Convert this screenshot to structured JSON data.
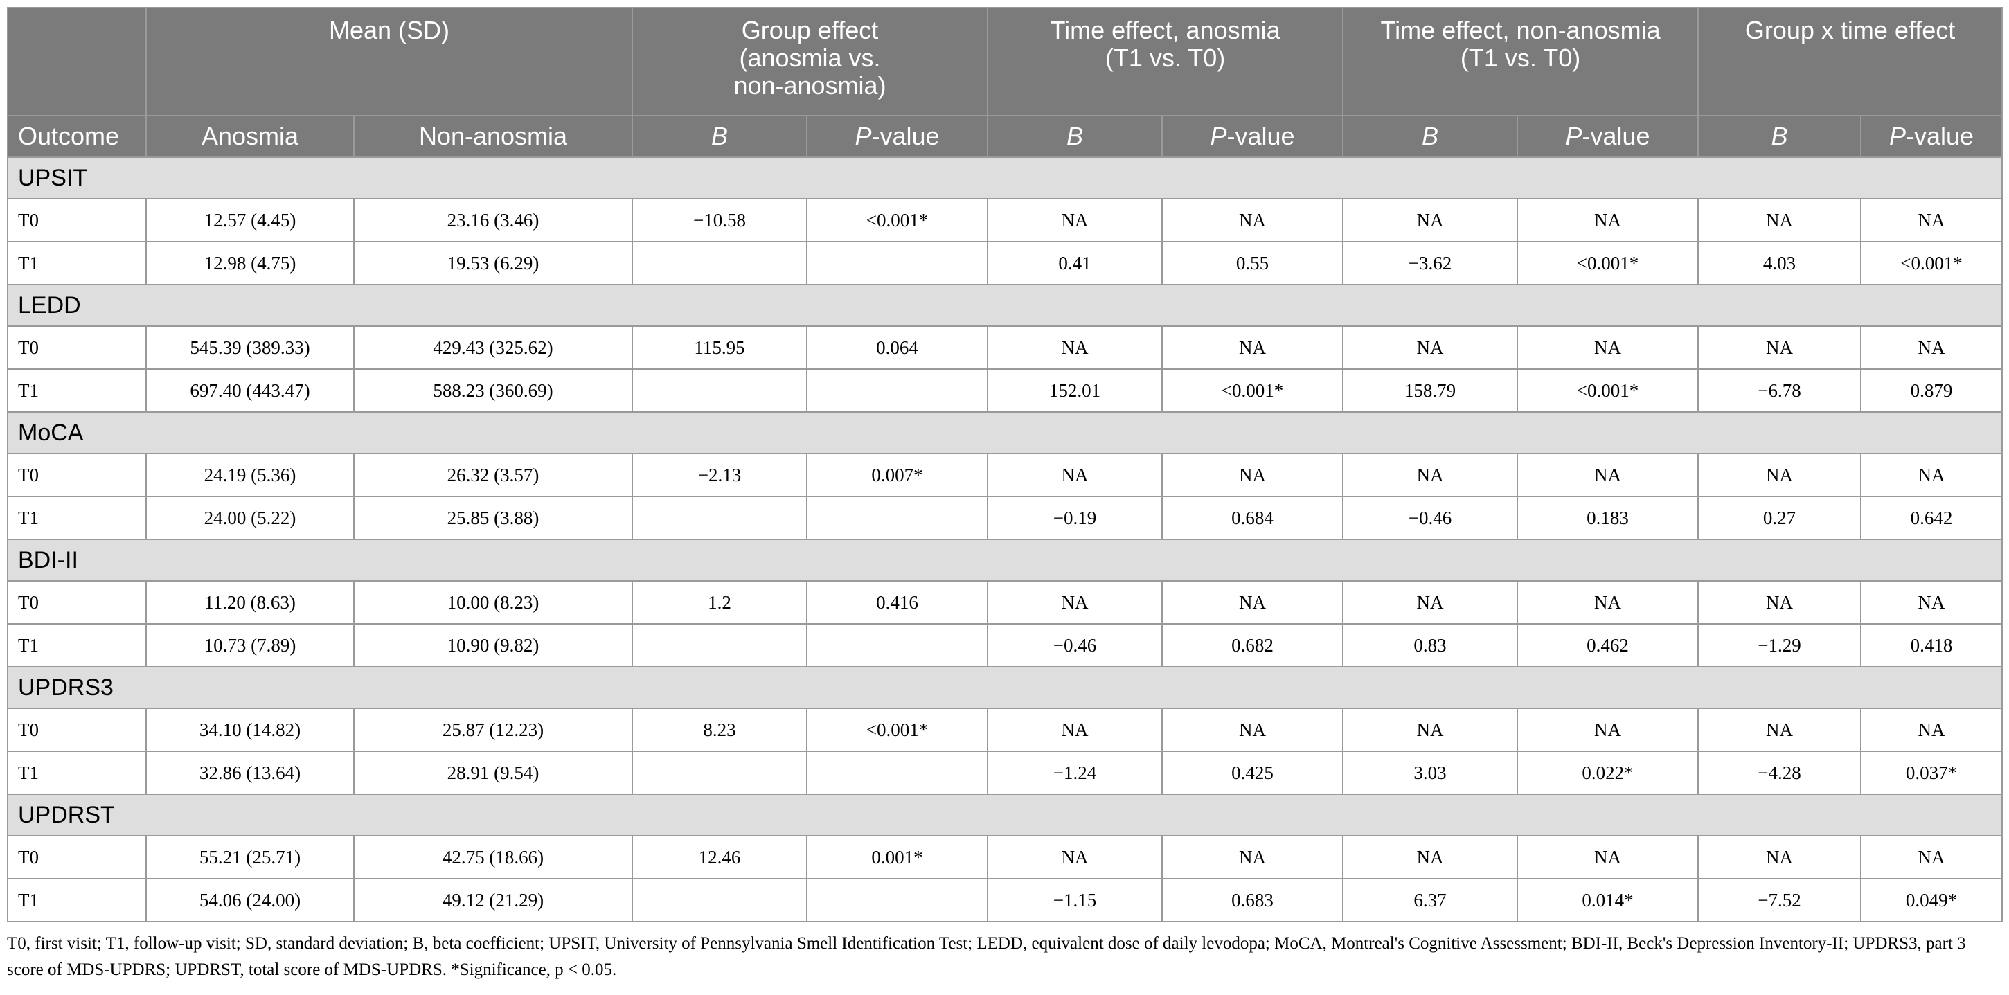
{
  "header": {
    "mean": "Mean (SD)",
    "group_effect": [
      "Group effect",
      "(anosmia vs.",
      "non-anosmia)"
    ],
    "time_anosmia": [
      "Time effect, anosmia",
      "(T1 vs. T0)"
    ],
    "time_nonanosmia": [
      "Time effect, non-anosmia",
      "(T1 vs. T0)"
    ],
    "group_time": "Group x time effect",
    "outcome": "Outcome",
    "anosmia": "Anosmia",
    "non_anosmia": "Non-anosmia",
    "b": "B",
    "p_italic": "P",
    "p_rest": "-value"
  },
  "sections": [
    {
      "name": "UPSIT",
      "rows": [
        [
          "T0",
          "12.57 (4.45)",
          "23.16 (3.46)",
          "−10.58",
          "<0.001*",
          "NA",
          "NA",
          "NA",
          "NA",
          "NA",
          "NA"
        ],
        [
          "T1",
          "12.98 (4.75)",
          "19.53 (6.29)",
          "",
          "",
          "0.41",
          "0.55",
          "−3.62",
          "<0.001*",
          "4.03",
          "<0.001*"
        ]
      ]
    },
    {
      "name": "LEDD",
      "rows": [
        [
          "T0",
          "545.39 (389.33)",
          "429.43 (325.62)",
          "115.95",
          "0.064",
          "NA",
          "NA",
          "NA",
          "NA",
          "NA",
          "NA"
        ],
        [
          "T1",
          "697.40 (443.47)",
          "588.23 (360.69)",
          "",
          "",
          "152.01",
          "<0.001*",
          "158.79",
          "<0.001*",
          "−6.78",
          "0.879"
        ]
      ]
    },
    {
      "name": "MoCA",
      "rows": [
        [
          "T0",
          "24.19 (5.36)",
          "26.32 (3.57)",
          "−2.13",
          "0.007*",
          "NA",
          "NA",
          "NA",
          "NA",
          "NA",
          "NA"
        ],
        [
          "T1",
          "24.00 (5.22)",
          "25.85 (3.88)",
          "",
          "",
          "−0.19",
          "0.684",
          "−0.46",
          "0.183",
          "0.27",
          "0.642"
        ]
      ]
    },
    {
      "name": "BDI-II",
      "rows": [
        [
          "T0",
          "11.20 (8.63)",
          "10.00 (8.23)",
          "1.2",
          "0.416",
          "NA",
          "NA",
          "NA",
          "NA",
          "NA",
          "NA"
        ],
        [
          "T1",
          "10.73 (7.89)",
          "10.90 (9.82)",
          "",
          "",
          "−0.46",
          "0.682",
          "0.83",
          "0.462",
          "−1.29",
          "0.418"
        ]
      ]
    },
    {
      "name": "UPDRS3",
      "rows": [
        [
          "T0",
          "34.10 (14.82)",
          "25.87 (12.23)",
          "8.23",
          "<0.001*",
          "NA",
          "NA",
          "NA",
          "NA",
          "NA",
          "NA"
        ],
        [
          "T1",
          "32.86 (13.64)",
          "28.91 (9.54)",
          "",
          "",
          "−1.24",
          "0.425",
          "3.03",
          "0.022*",
          "−4.28",
          "0.037*"
        ]
      ]
    },
    {
      "name": "UPDRST",
      "rows": [
        [
          "T0",
          "55.21 (25.71)",
          "42.75 (18.66)",
          "12.46",
          "0.001*",
          "NA",
          "NA",
          "NA",
          "NA",
          "NA",
          "NA"
        ],
        [
          "T1",
          "54.06 (24.00)",
          "49.12 (21.29)",
          "",
          "",
          "−1.15",
          "0.683",
          "6.37",
          "0.014*",
          "−7.52",
          "0.049*"
        ]
      ]
    }
  ],
  "footnote": "T0, first visit; T1, follow-up visit; SD, standard deviation; B, beta coefficient; UPSIT, University of Pennsylvania Smell Identification Test; LEDD, equivalent dose of daily levodopa; MoCA, Montreal's Cognitive Assessment; BDI-II, Beck's Depression Inventory-II; UPDRS3, part 3 score of MDS-UPDRS; UPDRST, total score of MDS-UPDRS. *Significance, p < 0.05.",
  "colors": {
    "header_bg": "#7b7b7b",
    "header_text": "#ffffff",
    "section_bg": "#dedede",
    "border": "#9a9a9a"
  }
}
